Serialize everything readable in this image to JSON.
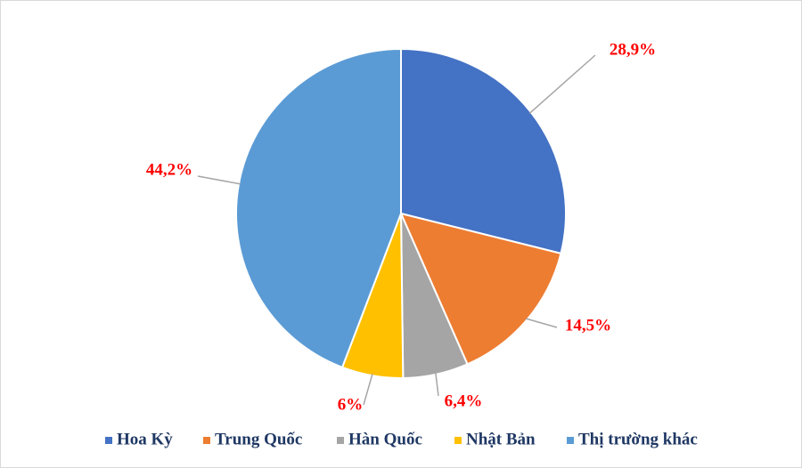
{
  "chart_data": {
    "type": "pie",
    "categories": [
      "Hoa Kỳ",
      "Trung Quốc",
      "Hàn Quốc",
      "Nhật Bản",
      "Thị trường khác"
    ],
    "values": [
      28.9,
      14.5,
      6.4,
      6,
      44.2
    ],
    "value_labels": [
      "28,9%",
      "14,5%",
      "6,4%",
      "6%",
      "44,2%"
    ],
    "colors": [
      "#4472c4",
      "#ed7d31",
      "#a5a5a5",
      "#ffc000",
      "#5b9bd5"
    ]
  }
}
